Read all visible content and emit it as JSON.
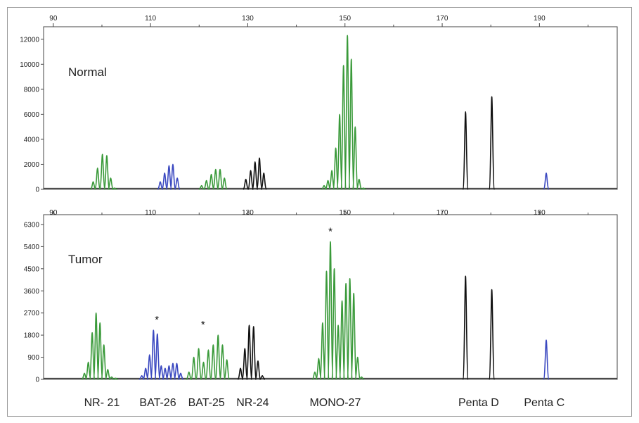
{
  "chart_data": [
    {
      "type": "line",
      "panel_label": "Normal",
      "x_ticks": [
        90,
        110,
        130,
        150,
        170,
        190
      ],
      "xlim": [
        88,
        206
      ],
      "y_ticks": [
        0,
        2000,
        4000,
        6000,
        8000,
        10000,
        12000
      ],
      "ylim": [
        0,
        13000
      ],
      "peaks": [
        {
          "color": "#3a9a3a",
          "x": [
            98.2,
            99.1,
            100.1,
            101.0,
            101.8,
            102.6
          ],
          "y": [
            600,
            1700,
            2800,
            2700,
            900,
            100
          ]
        },
        {
          "color": "#3a48c0",
          "x": [
            112.0,
            112.9,
            113.8,
            114.6,
            115.5
          ],
          "y": [
            600,
            1300,
            1900,
            2000,
            900
          ]
        },
        {
          "color": "#3a9a3a",
          "x": [
            120.5,
            121.5,
            122.5,
            123.4,
            124.3,
            125.2
          ],
          "y": [
            300,
            700,
            1200,
            1600,
            1600,
            900
          ]
        },
        {
          "color": "#111111",
          "x": [
            129.6,
            130.6,
            131.5,
            132.4,
            133.3
          ],
          "y": [
            800,
            1500,
            2200,
            2500,
            1300
          ]
        },
        {
          "color": "#3a9a3a",
          "x": [
            145.7,
            146.5,
            147.3,
            148.1,
            148.9,
            149.7,
            150.5,
            151.3,
            152.1,
            152.9,
            153.8
          ],
          "y": [
            300,
            700,
            1500,
            3300,
            6000,
            9900,
            12300,
            10400,
            5000,
            800,
            100
          ]
        },
        {
          "color": "#111111",
          "x": [
            174.8,
            180.2
          ],
          "y": [
            6200,
            7400
          ]
        },
        {
          "color": "#3a48c0",
          "x": [
            191.4
          ],
          "y": [
            1300
          ]
        }
      ],
      "asterisks_x": []
    },
    {
      "type": "line",
      "panel_label": "Tumor",
      "x_ticks": [
        90,
        110,
        130,
        150,
        170,
        190
      ],
      "xlim": [
        88,
        206
      ],
      "y_ticks": [
        0,
        900,
        1800,
        2700,
        3600,
        4500,
        5400,
        6300
      ],
      "ylim": [
        0,
        6700
      ],
      "peaks": [
        {
          "color": "#3a9a3a",
          "x": [
            96.4,
            97.2,
            98.0,
            98.8,
            99.6,
            100.4,
            101.2,
            102.0,
            102.8
          ],
          "y": [
            250,
            700,
            1900,
            2700,
            2300,
            1400,
            400,
            100,
            50
          ]
        },
        {
          "color": "#3a48c0",
          "x": [
            108.2,
            109.0,
            109.8,
            110.6,
            111.4,
            112.2,
            113.0,
            113.8,
            114.6,
            115.4,
            116.2
          ],
          "y": [
            150,
            450,
            1000,
            2000,
            1850,
            550,
            450,
            550,
            650,
            650,
            250
          ]
        },
        {
          "color": "#3a9a3a",
          "x": [
            117.9,
            118.9,
            119.9,
            120.9,
            121.9,
            122.9,
            123.9,
            124.8,
            125.7
          ],
          "y": [
            300,
            900,
            1250,
            700,
            1200,
            1400,
            1800,
            1400,
            800
          ]
        },
        {
          "color": "#111111",
          "x": [
            128.5,
            129.4,
            130.3,
            131.2,
            132.1,
            133.0
          ],
          "y": [
            450,
            1250,
            2200,
            2150,
            750,
            150
          ]
        },
        {
          "color": "#3a9a3a",
          "x": [
            143.8,
            144.6,
            145.4,
            146.2,
            147.0,
            147.8,
            148.6,
            149.4,
            150.2,
            151.0,
            151.8,
            152.6,
            153.4
          ],
          "y": [
            300,
            850,
            2300,
            4400,
            5600,
            4500,
            2200,
            3200,
            3900,
            4100,
            3500,
            900,
            100
          ]
        },
        {
          "color": "#111111",
          "x": [
            174.8,
            180.2
          ],
          "y": [
            4200,
            3650
          ]
        },
        {
          "color": "#3a48c0",
          "x": [
            191.4
          ],
          "y": [
            1600
          ]
        }
      ],
      "asterisks_x": [
        111.3,
        120.8,
        147.0
      ]
    }
  ],
  "annotations": {
    "asterisk": "*"
  },
  "markers": [
    {
      "label": "NR- 21",
      "x": 100.0
    },
    {
      "label": "BAT-26",
      "x": 111.5
    },
    {
      "label": "BAT-25",
      "x": 121.5
    },
    {
      "label": "NR-24",
      "x": 131.0
    },
    {
      "label": "MONO-27",
      "x": 148.0
    },
    {
      "label": "Penta D",
      "x": 177.5
    },
    {
      "label": "Penta C",
      "x": 191.0
    }
  ]
}
